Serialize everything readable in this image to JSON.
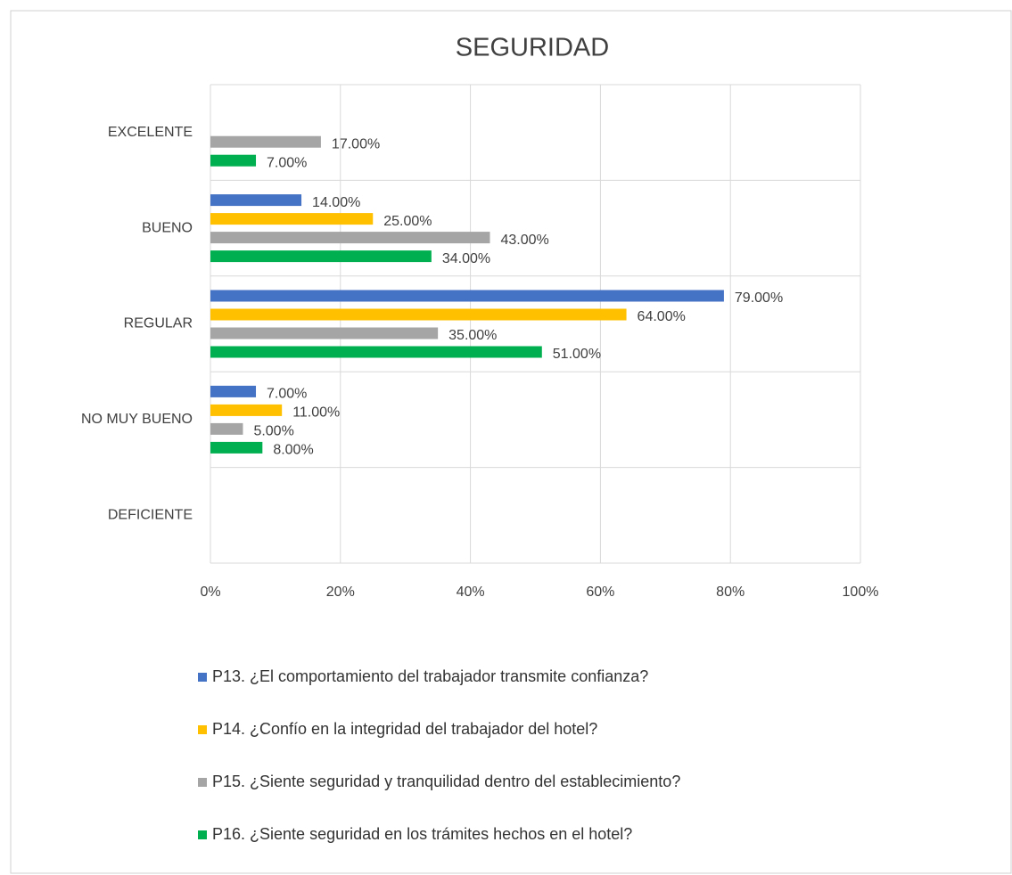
{
  "chart_data": {
    "type": "barh",
    "title": "SEGURIDAD",
    "categories": [
      "EXCELENTE",
      "BUENO",
      "REGULAR",
      "NO MUY BUENO",
      "DEFICIENTE"
    ],
    "series": [
      {
        "name": "P13. ¿El comportamiento del trabajador transmite confianza?",
        "color": "#4472c4",
        "values": [
          null,
          14,
          79,
          7,
          null
        ],
        "value_labels": [
          null,
          "14.00%",
          "79.00%",
          "7.00%",
          null
        ]
      },
      {
        "name": "P14. ¿Confío en la integridad del trabajador del hotel?",
        "color": "#ffc000",
        "values": [
          null,
          25,
          64,
          11,
          null
        ],
        "value_labels": [
          null,
          "25.00%",
          "64.00%",
          "11.00%",
          null
        ]
      },
      {
        "name": "P15. ¿Siente seguridad y tranquilidad dentro del establecimiento?",
        "color": "#a5a5a5",
        "values": [
          17,
          43,
          35,
          5,
          null
        ],
        "value_labels": [
          "17.00%",
          "43.00%",
          "35.00%",
          "5.00%",
          null
        ]
      },
      {
        "name": "P16. ¿Siente seguridad en los trámites hechos en el hotel?",
        "color": "#00b050",
        "values": [
          7,
          34,
          51,
          8,
          null
        ],
        "value_labels": [
          "7.00%",
          "34.00%",
          "51.00%",
          "8.00%",
          null
        ]
      }
    ],
    "xlim": [
      0,
      100
    ],
    "xticks": [
      {
        "value": 0,
        "label": "0%"
      },
      {
        "value": 20,
        "label": "20%"
      },
      {
        "value": 40,
        "label": "40%"
      },
      {
        "value": 60,
        "label": "60%"
      },
      {
        "value": 80,
        "label": "80%"
      },
      {
        "value": 100,
        "label": "100%"
      }
    ],
    "grid": true,
    "legend": "bottom"
  }
}
